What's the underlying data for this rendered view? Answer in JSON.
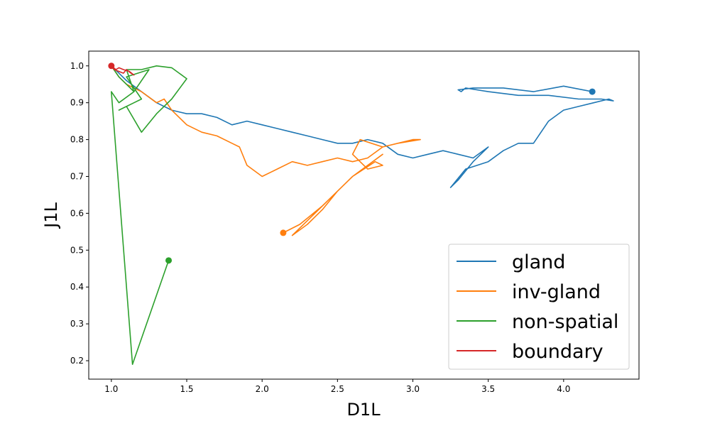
{
  "chart_data": {
    "type": "line",
    "xlabel": "D1L",
    "ylabel": "J1L",
    "xlim": [
      0.85,
      4.5
    ],
    "ylim": [
      0.15,
      1.04
    ],
    "x_ticks": [
      1.0,
      1.5,
      2.0,
      2.5,
      3.0,
      3.5,
      4.0
    ],
    "y_ticks": [
      0.2,
      0.3,
      0.4,
      0.5,
      0.6,
      0.7,
      0.8,
      0.9,
      1.0
    ],
    "x_tick_labels": [
      "1.0",
      "1.5",
      "2.0",
      "2.5",
      "3.0",
      "3.5",
      "4.0"
    ],
    "y_tick_labels": [
      "0.2",
      "0.3",
      "0.4",
      "0.5",
      "0.6",
      "0.7",
      "0.8",
      "0.9",
      "1.0"
    ],
    "legend_placement": "lower-right",
    "grid": false,
    "series": [
      {
        "name": "gland",
        "color": "#1f77b4",
        "x": [
          1.0,
          1.05,
          1.1,
          1.2,
          1.3,
          1.4,
          1.5,
          1.6,
          1.7,
          1.8,
          1.9,
          2.0,
          2.1,
          2.2,
          2.3,
          2.4,
          2.5,
          2.6,
          2.7,
          2.8,
          2.9,
          3.0,
          3.1,
          3.2,
          3.3,
          3.4,
          3.5,
          3.4,
          3.3,
          3.25,
          3.35,
          3.5,
          3.6,
          3.7,
          3.8,
          3.9,
          4.0,
          4.1,
          4.2,
          4.3,
          4.33,
          4.25,
          4.1,
          3.9,
          3.7,
          3.5,
          3.35,
          3.32,
          3.3,
          3.4,
          3.6,
          3.8,
          4.0,
          4.19
        ],
        "y": [
          1.0,
          0.98,
          0.96,
          0.93,
          0.9,
          0.88,
          0.87,
          0.87,
          0.86,
          0.84,
          0.85,
          0.84,
          0.83,
          0.82,
          0.81,
          0.8,
          0.79,
          0.79,
          0.8,
          0.79,
          0.76,
          0.75,
          0.76,
          0.77,
          0.76,
          0.75,
          0.78,
          0.74,
          0.69,
          0.67,
          0.72,
          0.74,
          0.77,
          0.79,
          0.79,
          0.85,
          0.88,
          0.89,
          0.9,
          0.91,
          0.905,
          0.91,
          0.91,
          0.92,
          0.92,
          0.93,
          0.94,
          0.93,
          0.935,
          0.94,
          0.94,
          0.93,
          0.945,
          0.93
        ]
      },
      {
        "name": "inv-gland",
        "color": "#ff7f0e",
        "x": [
          1.0,
          1.05,
          1.1,
          1.2,
          1.3,
          1.35,
          1.4,
          1.5,
          1.6,
          1.7,
          1.8,
          1.85,
          1.9,
          2.0,
          2.1,
          2.2,
          2.3,
          2.4,
          2.5,
          2.6,
          2.7,
          2.8,
          2.9,
          3.0,
          3.05,
          2.9,
          2.8,
          2.65,
          2.6,
          2.7,
          2.8,
          2.75,
          2.6,
          2.5,
          2.4,
          2.3,
          2.2,
          2.3,
          2.4,
          2.5,
          2.6,
          2.7,
          2.8,
          2.6,
          2.4,
          2.25,
          2.14
        ],
        "y": [
          1.0,
          0.97,
          0.95,
          0.93,
          0.9,
          0.91,
          0.88,
          0.84,
          0.82,
          0.81,
          0.79,
          0.78,
          0.73,
          0.7,
          0.72,
          0.74,
          0.73,
          0.74,
          0.75,
          0.74,
          0.75,
          0.78,
          0.79,
          0.8,
          0.8,
          0.79,
          0.78,
          0.8,
          0.76,
          0.72,
          0.73,
          0.74,
          0.7,
          0.66,
          0.61,
          0.57,
          0.54,
          0.58,
          0.62,
          0.66,
          0.7,
          0.73,
          0.76,
          0.7,
          0.62,
          0.57,
          0.547
        ]
      },
      {
        "name": "non-spatial",
        "color": "#2ca02c",
        "x": [
          1.0,
          1.05,
          1.1,
          1.15,
          1.1,
          1.2,
          1.3,
          1.4,
          1.45,
          1.5,
          1.4,
          1.3,
          1.2,
          1.1,
          1.05,
          1.15,
          1.2,
          1.1,
          1.25,
          1.15,
          1.05,
          1.0,
          1.14,
          1.38
        ],
        "y": [
          1.0,
          0.97,
          0.95,
          0.93,
          0.99,
          0.99,
          1.0,
          0.995,
          0.98,
          0.965,
          0.91,
          0.87,
          0.82,
          0.89,
          0.88,
          0.9,
          0.91,
          0.97,
          0.99,
          0.93,
          0.9,
          0.93,
          0.19,
          0.472
        ]
      },
      {
        "name": "boundary",
        "color": "#d62728",
        "x": [
          1.0,
          1.02,
          1.05,
          1.08,
          1.1,
          1.13,
          1.15,
          1.12,
          1.08,
          1.05,
          1.03,
          1.0
        ],
        "y": [
          1.0,
          0.99,
          0.985,
          0.98,
          0.99,
          0.98,
          0.975,
          0.985,
          0.99,
          0.995,
          0.99,
          1.0
        ]
      }
    ]
  }
}
